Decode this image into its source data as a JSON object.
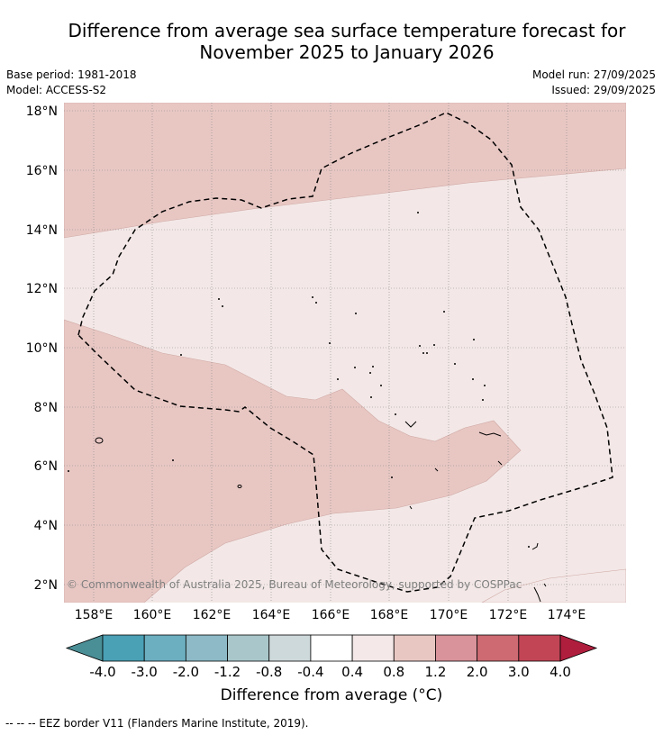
{
  "header": {
    "title_line1": "Difference from average sea surface temperature forecast for",
    "title_line2": "November 2025 to January 2026",
    "base_period": "Base period: 1981-2018",
    "model": "Model: ACCESS-S2",
    "model_run": "Model run: 27/09/2025",
    "issued": "Issued: 29/09/2025"
  },
  "map": {
    "lat_labels": [
      "18°N",
      "16°N",
      "14°N",
      "12°N",
      "10°N",
      "8°N",
      "6°N",
      "4°N",
      "2°N"
    ],
    "lon_labels": [
      "158°E",
      "160°E",
      "162°E",
      "164°E",
      "166°E",
      "168°E",
      "170°E",
      "172°E",
      "174°E"
    ],
    "credit": "© Commonwealth of Australia 2025, Bureau of Meteorology, supported by COSPPac",
    "zone_colors": {
      "0.8-1.2": "#e8c7c3",
      "0.4-0.8": "#f3e8e7"
    },
    "eez_style": "dashed black"
  },
  "colorbar": {
    "tick_labels": [
      "-4.0",
      "-3.0",
      "-2.0",
      "-1.2",
      "-0.8",
      "-0.4",
      "0.4",
      "0.8",
      "1.2",
      "2.0",
      "3.0",
      "4.0"
    ],
    "colors": [
      "#4a8e96",
      "#4aa0b5",
      "#6bafc0",
      "#8dbac6",
      "#a9c7cb",
      "#ced9db",
      "#ffffff",
      "#f4e9e8",
      "#e8c7c3",
      "#d9939a",
      "#cd6a72",
      "#c24555",
      "#b01e3e"
    ],
    "label": "Difference from average (°C)"
  },
  "footer": {
    "legend": "--  --  -- EEZ border V11 (Flanders Marine Institute, 2019)."
  }
}
